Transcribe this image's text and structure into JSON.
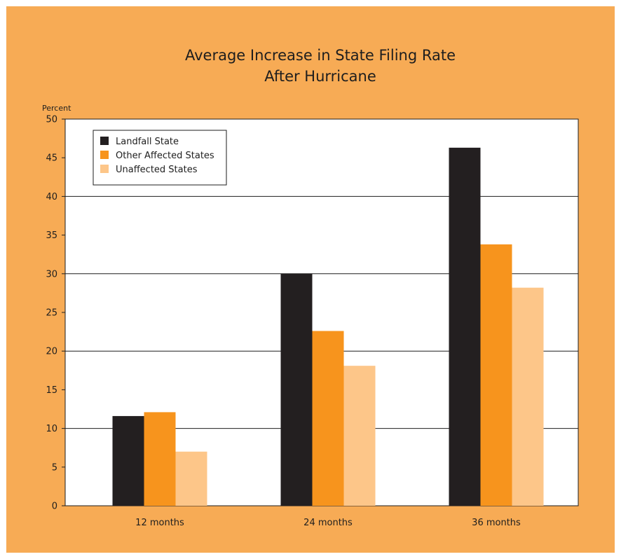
{
  "chart_data": {
    "type": "bar",
    "title": "Average Increase in State Filing Rate",
    "subtitle": "After Hurricane",
    "ylabel": "Percent",
    "xlabel": "",
    "categories": [
      "12 months",
      "24 months",
      "36 months"
    ],
    "series": [
      {
        "name": "Landfall State",
        "color": "#231f20",
        "values": [
          11.6,
          30.0,
          46.3
        ]
      },
      {
        "name": "Other Affected States",
        "color": "#f7941d",
        "values": [
          12.1,
          22.6,
          33.8
        ]
      },
      {
        "name": "Unaffected States",
        "color": "#fdc689",
        "values": [
          7.0,
          18.1,
          28.2
        ]
      }
    ],
    "ylim": [
      0,
      50
    ],
    "yticks": [
      "0",
      "5",
      "10",
      "15",
      "20",
      "25",
      "30",
      "35",
      "40",
      "45",
      "50"
    ],
    "grid": "horizontal at 10, 20, 30, 40",
    "legend_position": "top-left"
  },
  "colors": {
    "background": "#f7ab55",
    "plot_area": "#ffffff"
  }
}
